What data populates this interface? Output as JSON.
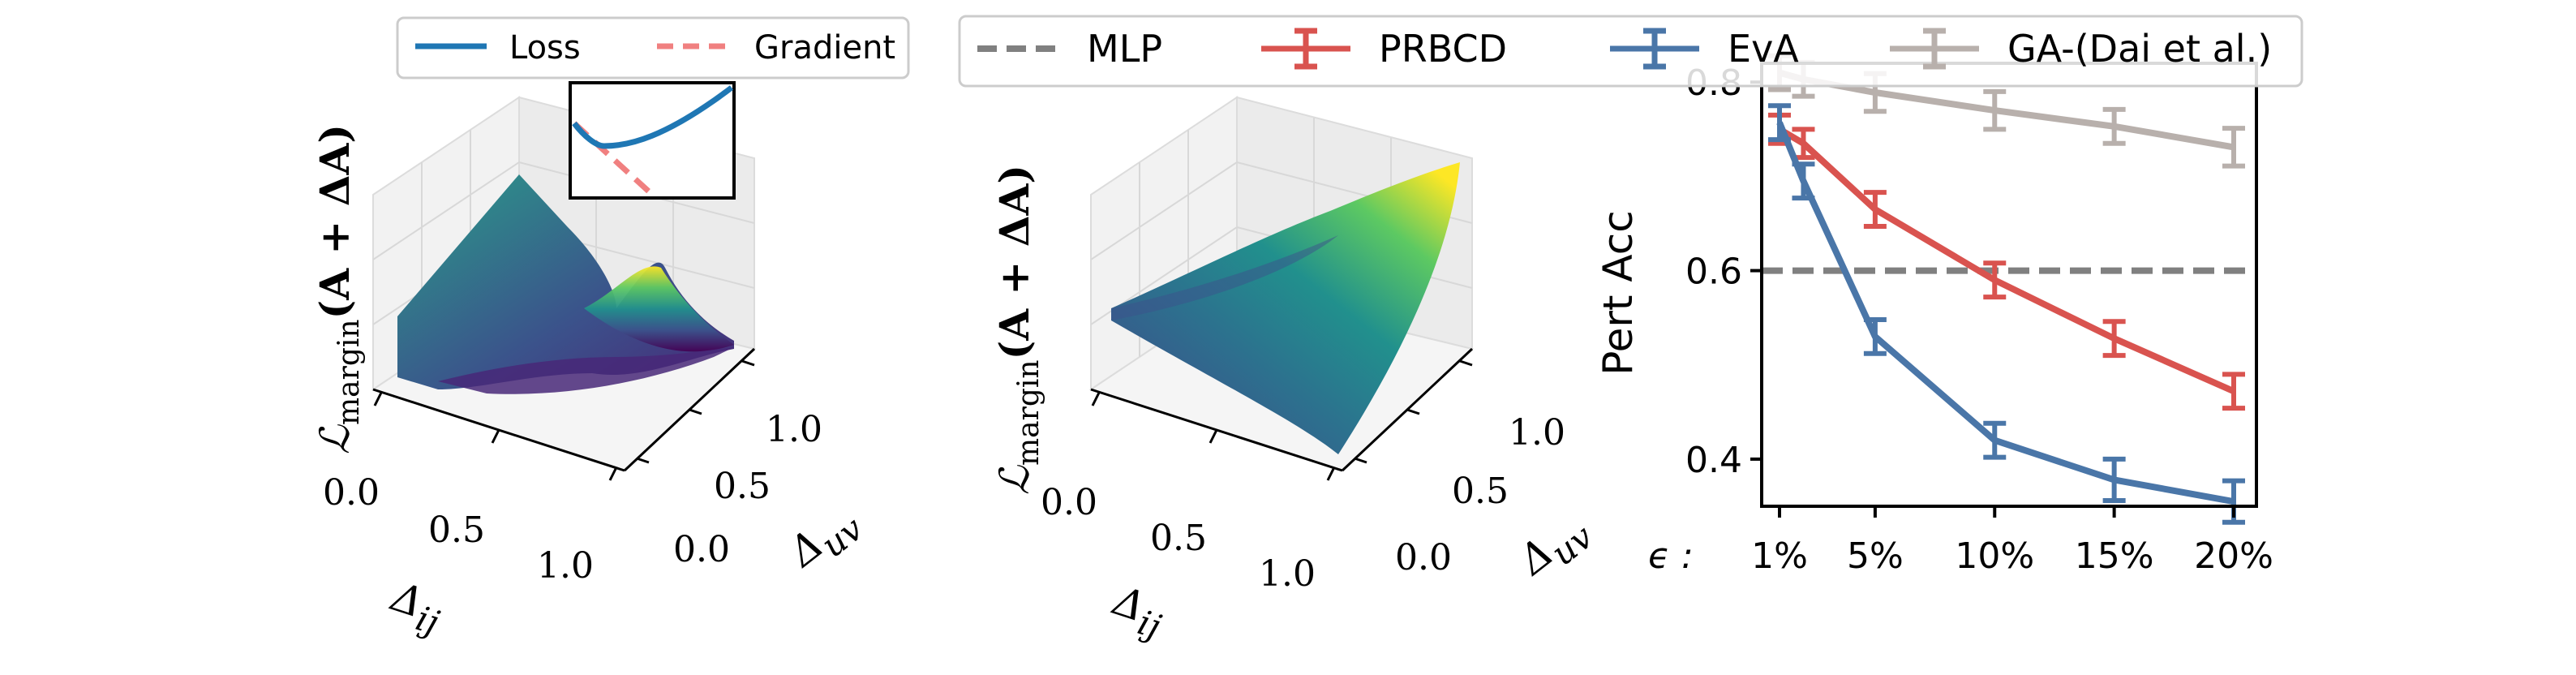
{
  "left_legend": {
    "items": [
      {
        "label": "Loss",
        "color": "#1f77b4",
        "style": "solid"
      },
      {
        "label": "Gradient",
        "color": "#f08080",
        "style": "dashed"
      }
    ]
  },
  "top_legend": {
    "items": [
      {
        "label": "MLP",
        "color": "#808080",
        "style": "dashed"
      },
      {
        "label": "PRBCD",
        "color": "#d9534f",
        "style": "errorbar"
      },
      {
        "label": "EvA",
        "color": "#4a76a8",
        "style": "errorbar"
      },
      {
        "label": "GA-(Dai et al.)",
        "color": "#b8b0ac",
        "style": "errorbar"
      }
    ]
  },
  "surface1": {
    "zlabel_main": "ℒ",
    "zlabel_sub": "margin",
    "zlabel_arg": "(A + ΔA)",
    "xlabel_main": "Δ",
    "xlabel_sub": "ij",
    "ylabel_main": "Δ",
    "ylabel_sub": "uv",
    "x_ticks": [
      "0.0",
      "0.5",
      "1.0"
    ],
    "y_ticks": [
      "0.0",
      "0.5",
      "1.0"
    ]
  },
  "surface2": {
    "zlabel_main": "ℒ",
    "zlabel_sub": "margin",
    "zlabel_arg": "(A + ΔA)",
    "xlabel_main": "Δ",
    "xlabel_sub": "ij",
    "ylabel_main": "Δ",
    "ylabel_sub": "uv",
    "x_ticks": [
      "0.0",
      "0.5",
      "1.0"
    ],
    "y_ticks": [
      "0.0",
      "0.5",
      "1.0"
    ]
  },
  "chart_data": {
    "type": "line",
    "ylabel": "Pert Acc",
    "x_prefix": "ϵ :",
    "categories": [
      "1%",
      "5%",
      "10%",
      "15%",
      "20%"
    ],
    "x": [
      1,
      2,
      5,
      10,
      15,
      20
    ],
    "ylim": [
      0.35,
      0.82
    ],
    "y_ticks": [
      "0.4",
      "0.6",
      "0.8"
    ],
    "mlp_value": 0.6,
    "series": [
      {
        "name": "PRBCD",
        "color": "#d9534f",
        "values": [
          0.75,
          0.735,
          0.665,
          0.59,
          0.528,
          0.472
        ],
        "errors": [
          0.015,
          0.015,
          0.018,
          0.018,
          0.018,
          0.018
        ]
      },
      {
        "name": "EvA",
        "color": "#4a76a8",
        "values": [
          0.757,
          0.695,
          0.53,
          0.42,
          0.378,
          0.355
        ],
        "errors": [
          0.018,
          0.018,
          0.018,
          0.018,
          0.022,
          0.022
        ]
      },
      {
        "name": "GA-(Dai et al.)",
        "color": "#b8b0ac",
        "values": [
          0.81,
          0.803,
          0.789,
          0.77,
          0.753,
          0.731
        ],
        "errors": [
          0.018,
          0.018,
          0.02,
          0.02,
          0.018,
          0.02
        ]
      }
    ]
  }
}
